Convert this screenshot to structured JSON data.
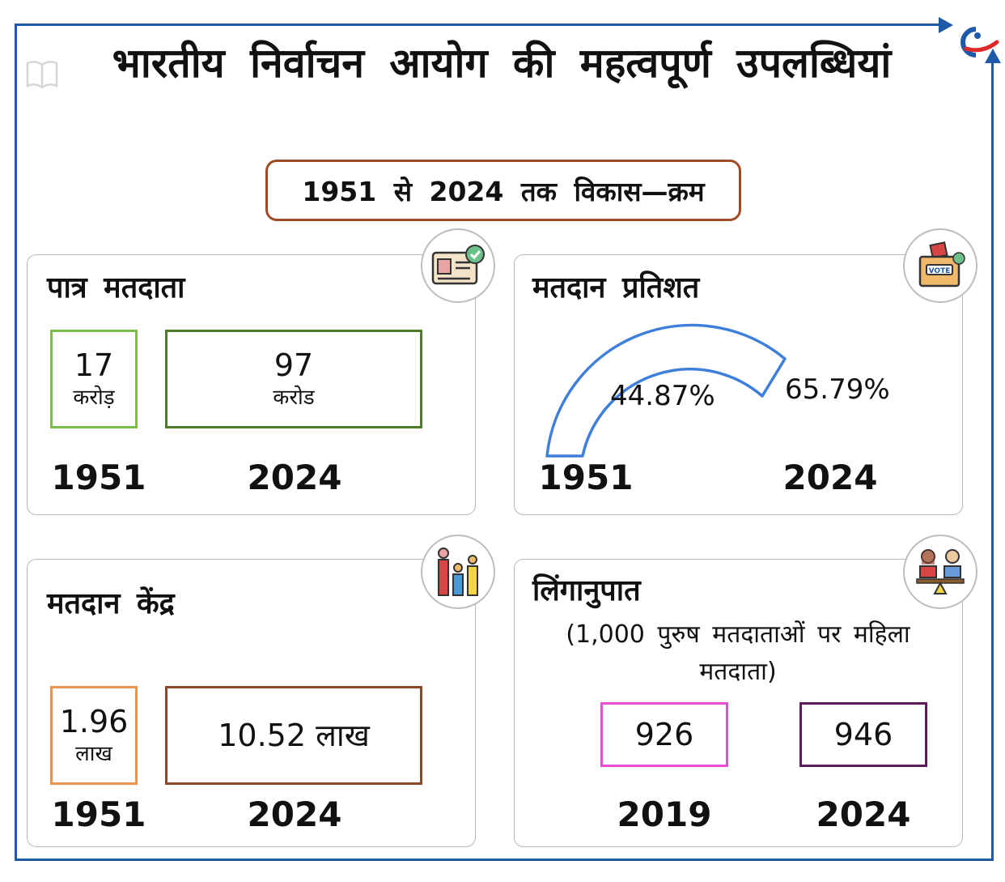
{
  "header": {
    "title": "भारतीय निर्वाचन आयोग की महत्वपूर्ण उपलब्धियां",
    "subtitle": "1951 से 2024 तक विकास—क्रम"
  },
  "colors": {
    "frame": "#1e5aa8",
    "subtitle_border": "#a24a26",
    "voters_1951": "#7cc04b",
    "voters_2024": "#4e7c2a",
    "booths_1951": "#f0924a",
    "booths_2024": "#8a4a2a",
    "sex_ratio_2019": "#e84fd6",
    "sex_ratio_2024": "#5a1d5a",
    "turnout_arc": "#3d7fdb"
  },
  "eligible_voters": {
    "title": "पात्र मतदाता",
    "icon": "id-card-check-icon",
    "value_1951": "17",
    "unit_1951": "करोड़",
    "value_2024": "97",
    "unit_2024": "करोड",
    "year_1951": "1951",
    "year_2024": "2024"
  },
  "voter_turnout": {
    "title": "मतदान प्रतिशत",
    "icon": "ballot-box-icon",
    "value_1951": "44.87%",
    "value_2024": "65.79%",
    "year_1951": "1951",
    "year_2024": "2024"
  },
  "polling_stations": {
    "title": "मतदान केंद्र",
    "icon": "people-podium-icon",
    "value_1951": "1.96",
    "unit_1951": "लाख",
    "value_2024": "10.52 लाख",
    "year_1951": "1951",
    "year_2024": "2024"
  },
  "sex_ratio": {
    "title": "लिंगानुपात",
    "note": "(1,000 पुरुष मतदाताओं पर महिला मतदाता)",
    "icon": "gender-balance-icon",
    "value_2019": "926",
    "value_2024": "946",
    "year_2019": "2019",
    "year_2024": "2024"
  }
}
